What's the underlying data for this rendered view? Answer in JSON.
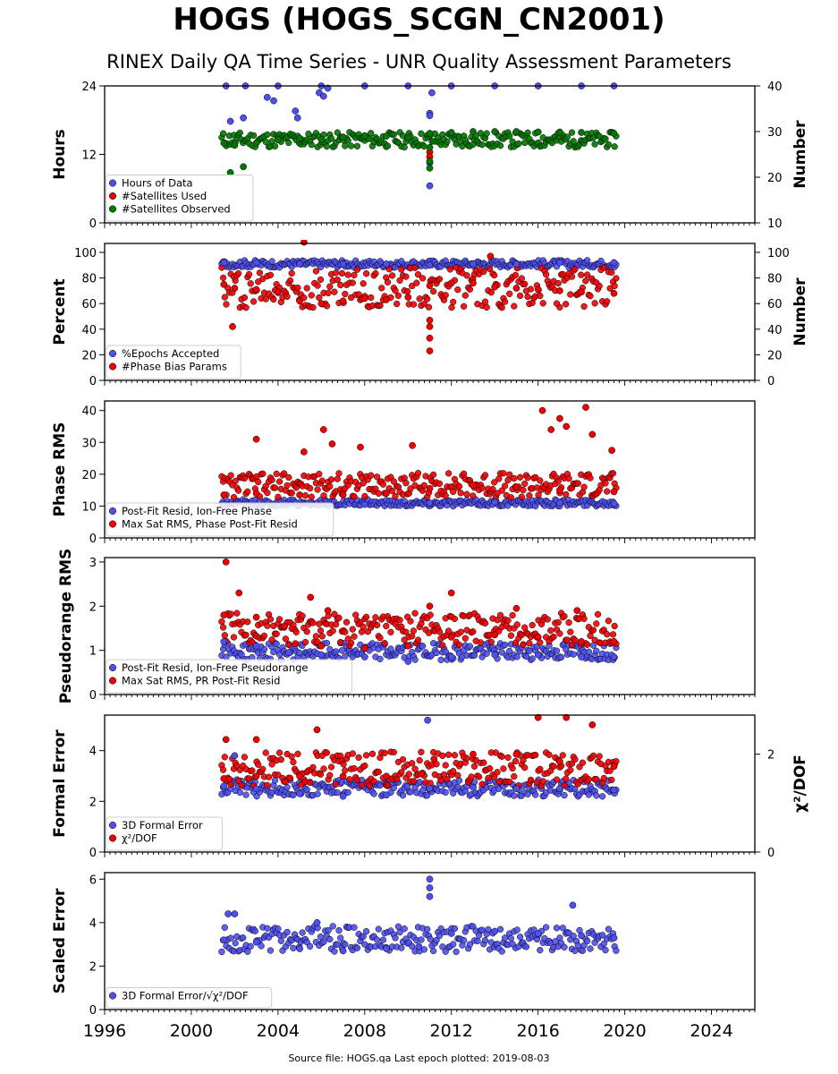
{
  "title": "HOGS (HOGS_SCGN_CN2001)",
  "subtitle": "RINEX Daily QA Time Series - UNR Quality Assessment Parameters",
  "footer": "Source file: HOGS.qa Last epoch plotted: 2019-08-03",
  "colors": {
    "blue": "#4f4ff0",
    "red": "#f00000",
    "green": "#007800"
  },
  "chart_data": [
    {
      "type": "scatter",
      "ylabel": "Hours",
      "ylabel_right": "Number",
      "xlim": [
        1996,
        2026
      ],
      "ylim": [
        0,
        24
      ],
      "ylim_right": [
        10,
        40
      ],
      "yticks": [
        "0",
        "12",
        "24"
      ],
      "yticks_right": [
        "10",
        "20",
        "30",
        "40"
      ],
      "legend_position": "lower-left",
      "series": [
        {
          "name": "Hours of Data",
          "axis": "left",
          "color": "#4f4ff0",
          "points": [
            [
              2001.6,
              24
            ],
            [
              2002.5,
              24
            ],
            [
              2004,
              24
            ],
            [
              2006,
              24
            ],
            [
              2008,
              24
            ],
            [
              2010,
              24
            ],
            [
              2012,
              24
            ],
            [
              2014,
              24
            ],
            [
              2016,
              24
            ],
            [
              2018,
              24
            ],
            [
              2019.5,
              24
            ],
            [
              2001.8,
              17.8
            ],
            [
              2002.4,
              18.4
            ],
            [
              2003.5,
              22
            ],
            [
              2003.8,
              21.4
            ],
            [
              2004.8,
              19.6
            ],
            [
              2004.9,
              18.4
            ],
            [
              2005.9,
              22.8
            ],
            [
              2006.1,
              22.2
            ],
            [
              2006.3,
              23.6
            ],
            [
              2011.0,
              19.2
            ],
            [
              2011.0,
              18.8
            ],
            [
              2011.0,
              10.5
            ],
            [
              2011.0,
              6.5
            ],
            [
              2011.1,
              22.8
            ]
          ]
        },
        {
          "name": "#Satellites Used",
          "axis": "right",
          "color": "#f00000",
          "points": [
            [
              2011.0,
              25.5
            ],
            [
              2011.0,
              24.5
            ]
          ]
        },
        {
          "name": "#Satellites Observed",
          "axis": "right",
          "color": "#007800",
          "points": [
            [
              2001.5,
              27.5
            ],
            [
              2002,
              27
            ],
            [
              2003,
              27.5
            ],
            [
              2004,
              28.2
            ],
            [
              2005,
              28.5
            ],
            [
              2006,
              28.3
            ],
            [
              2007,
              28.8
            ],
            [
              2008,
              29.1
            ],
            [
              2009,
              29.0
            ],
            [
              2010,
              28.7
            ],
            [
              2011,
              29.6
            ],
            [
              2012,
              29.8
            ],
            [
              2013,
              30.0
            ],
            [
              2014,
              30.0
            ],
            [
              2015,
              30.0
            ],
            [
              2016,
              29.9
            ],
            [
              2017,
              29.9
            ],
            [
              2018,
              29.8
            ],
            [
              2019.5,
              29.6
            ],
            [
              2001.8,
              21
            ],
            [
              2002.4,
              22.3
            ],
            [
              2011.0,
              26.5
            ],
            [
              2011.0,
              23.5
            ],
            [
              2011.0,
              22.0
            ]
          ]
        }
      ],
      "band": {
        "series": "#Satellites Observed",
        "axis": "right",
        "x_start": 2001.4,
        "x_end": 2019.6,
        "lower": 25.8,
        "upper": 30.6
      }
    },
    {
      "type": "scatter",
      "ylabel": "Percent",
      "ylabel_right": "Number",
      "xlim": [
        1996,
        2026
      ],
      "ylim": [
        0,
        107
      ],
      "ylim_right": [
        0,
        107
      ],
      "yticks": [
        "0",
        "20",
        "40",
        "60",
        "80",
        "100"
      ],
      "yticks_right": [
        "0",
        "20",
        "40",
        "60",
        "80",
        "100"
      ],
      "legend_position": "lower-left",
      "series": [
        {
          "name": "%Epochs Accepted",
          "axis": "left",
          "color": "#4f4ff0",
          "points": [
            [
              2001.5,
              92
            ],
            [
              2003,
              92
            ],
            [
              2005,
              91
            ],
            [
              2007,
              91
            ],
            [
              2009,
              91
            ],
            [
              2011,
              90
            ],
            [
              2013,
              91
            ],
            [
              2015,
              91
            ],
            [
              2017,
              92
            ],
            [
              2019.5,
              92
            ]
          ]
        },
        {
          "name": "#Phase Bias Params",
          "axis": "right",
          "color": "#f00000",
          "points": [
            [
              2001.5,
              75
            ],
            [
              2002,
              72
            ],
            [
              2003,
              71
            ],
            [
              2004,
              69
            ],
            [
              2005,
              62
            ],
            [
              2006,
              60
            ],
            [
              2007,
              62
            ],
            [
              2008,
              64
            ],
            [
              2009,
              63
            ],
            [
              2010,
              65
            ],
            [
              2011,
              74
            ],
            [
              2012,
              76
            ],
            [
              2013,
              76
            ],
            [
              2014,
              73
            ],
            [
              2015,
              72
            ],
            [
              2016,
              71
            ],
            [
              2017,
              70
            ],
            [
              2018,
              69
            ],
            [
              2019.5,
              68
            ],
            [
              2001.9,
              42
            ],
            [
              2005.2,
              108
            ],
            [
              2011.0,
              47
            ],
            [
              2011.0,
              42
            ],
            [
              2011.0,
              33
            ],
            [
              2011.0,
              23
            ],
            [
              2013.8,
              97
            ]
          ]
        }
      ],
      "band_list": [
        {
          "series": "%Epochs Accepted",
          "x_start": 2001.4,
          "x_end": 2019.6,
          "lower": 87,
          "upper": 95
        },
        {
          "series": "#Phase Bias Params",
          "x_start": 2001.4,
          "x_end": 2019.6,
          "lower": 50,
          "upper": 95
        }
      ]
    },
    {
      "type": "scatter",
      "ylabel": "Phase RMS",
      "xlim": [
        1996,
        2026
      ],
      "ylim": [
        0,
        43
      ],
      "yticks": [
        "0",
        "10",
        "20",
        "30",
        "40"
      ],
      "legend_position": "lower-left",
      "series": [
        {
          "name": "Post-Fit Resid, Ion-Free Phase",
          "axis": "left",
          "color": "#4f4ff0",
          "points": [
            [
              2001.5,
              10.5
            ],
            [
              2004,
              10.2
            ],
            [
              2008,
              10.5
            ],
            [
              2011,
              11.0
            ],
            [
              2014,
              11.2
            ],
            [
              2017,
              11.0
            ],
            [
              2019.5,
              10.8
            ]
          ]
        },
        {
          "name": "Max Sat RMS, Phase Post-Fit Resid",
          "axis": "left",
          "color": "#f00000",
          "points": [
            [
              2001.5,
              13.5
            ],
            [
              2003,
              14
            ],
            [
              2005,
              13.5
            ],
            [
              2007,
              13.5
            ],
            [
              2009,
              14
            ],
            [
              2011,
              15.5
            ],
            [
              2013,
              16.5
            ],
            [
              2015,
              16
            ],
            [
              2017,
              15
            ],
            [
              2019.5,
              14.5
            ],
            [
              2003.0,
              31
            ],
            [
              2006.1,
              34
            ],
            [
              2006.5,
              29.5
            ],
            [
              2007.8,
              28.5
            ],
            [
              2010.2,
              29
            ],
            [
              2016.2,
              40
            ],
            [
              2016.6,
              34
            ],
            [
              2017.0,
              37.5
            ],
            [
              2017.3,
              35
            ],
            [
              2018.2,
              41
            ],
            [
              2018.5,
              32.5
            ],
            [
              2019.4,
              27.5
            ],
            [
              2005.2,
              27
            ]
          ]
        }
      ],
      "band_list": [
        {
          "series": "Post-Fit Resid, Ion-Free Phase",
          "x_start": 2001.4,
          "x_end": 2019.6,
          "lower": 9.5,
          "upper": 12.5
        },
        {
          "series": "Max Sat RMS, Phase Post-Fit Resid",
          "x_start": 2001.4,
          "x_end": 2019.6,
          "lower": 11,
          "upper": 22
        }
      ]
    },
    {
      "type": "scatter",
      "ylabel": "Pseudorange RMS",
      "xlim": [
        1996,
        2026
      ],
      "ylim": [
        0,
        3.1
      ],
      "yticks": [
        "0",
        "1",
        "2",
        "3"
      ],
      "legend_position": "lower-left",
      "series": [
        {
          "name": "Post-Fit Resid, Ion-Free Pseudorange",
          "axis": "left",
          "color": "#4f4ff0",
          "points": [
            [
              2001.5,
              1.2
            ],
            [
              2003,
              1.1
            ],
            [
              2004.5,
              0.95
            ],
            [
              2006,
              0.9
            ],
            [
              2008,
              0.85
            ],
            [
              2010,
              0.75
            ],
            [
              2012,
              0.85
            ],
            [
              2014,
              0.9
            ],
            [
              2016,
              0.9
            ],
            [
              2018,
              0.85
            ],
            [
              2019.5,
              0.85
            ]
          ]
        },
        {
          "name": "Max Sat RMS, PR Post-Fit Resid",
          "axis": "left",
          "color": "#f00000",
          "points": [
            [
              2001.5,
              1.8
            ],
            [
              2003,
              1.75
            ],
            [
              2004.3,
              1.55
            ],
            [
              2004.8,
              1.15
            ],
            [
              2006,
              1.1
            ],
            [
              2008,
              1.05
            ],
            [
              2010,
              1.1
            ],
            [
              2012,
              1.3
            ],
            [
              2014,
              1.35
            ],
            [
              2016,
              1.3
            ],
            [
              2018,
              1.2
            ],
            [
              2019.5,
              1.2
            ],
            [
              2001.6,
              3.0
            ],
            [
              2005.5,
              2.2
            ],
            [
              2006.3,
              1.9
            ],
            [
              2011.0,
              2.0
            ],
            [
              2012.0,
              2.3
            ],
            [
              2015.0,
              1.95
            ],
            [
              2017.8,
              1.9
            ],
            [
              2002.2,
              2.3
            ]
          ]
        }
      ],
      "band_list": [
        {
          "series": "Post-Fit Resid, Ion-Free Pseudorange",
          "x_start": 2001.4,
          "x_end": 2019.6,
          "lower": 0.7,
          "upper": 1.25
        },
        {
          "series": "Max Sat RMS, PR Post-Fit Resid",
          "x_start": 2001.4,
          "x_end": 2019.6,
          "lower": 0.95,
          "upper": 2.0
        }
      ]
    },
    {
      "type": "scatter",
      "ylabel": "Formal Error",
      "ylabel_right": "χ²/DOF",
      "xlim": [
        1996,
        2026
      ],
      "ylim": [
        0,
        5.4
      ],
      "ylim_right": [
        0,
        2.8
      ],
      "yticks": [
        "0",
        "2",
        "4"
      ],
      "yticks_right": [
        "0",
        "2"
      ],
      "legend_position": "lower-left",
      "series": [
        {
          "name": "3D Formal Error",
          "axis": "left",
          "color": "#4f4ff0",
          "points": [
            [
              2001.5,
              2.6
            ],
            [
              2003,
              2.5
            ],
            [
              2005,
              2.3
            ],
            [
              2007,
              2.2
            ],
            [
              2009,
              2.25
            ],
            [
              2011,
              2.5
            ],
            [
              2013,
              2.55
            ],
            [
              2015,
              2.5
            ],
            [
              2017,
              2.5
            ],
            [
              2019.5,
              2.45
            ],
            [
              2002.0,
              3.8
            ],
            [
              2010.9,
              5.2
            ]
          ]
        },
        {
          "name": "χ²/DOF",
          "axis": "right",
          "color": "#f00000",
          "points": [
            [
              2001.5,
              1.5
            ],
            [
              2003,
              1.55
            ],
            [
              2005,
              1.55
            ],
            [
              2007,
              1.55
            ],
            [
              2009,
              1.55
            ],
            [
              2010.6,
              1.6
            ],
            [
              2011.2,
              1.9
            ],
            [
              2013,
              2.0
            ],
            [
              2015,
              2.0
            ],
            [
              2017,
              1.85
            ],
            [
              2019.5,
              1.75
            ],
            [
              2001.6,
              2.3
            ],
            [
              2003.0,
              2.3
            ],
            [
              2005.8,
              2.5
            ],
            [
              2016.0,
              2.75
            ],
            [
              2017.3,
              2.75
            ],
            [
              2018.5,
              2.6
            ]
          ]
        }
      ],
      "band_list": [
        {
          "series": "3D Formal Error",
          "x_start": 2001.4,
          "x_end": 2019.6,
          "lower": 2.05,
          "upper": 3.0
        },
        {
          "series": "χ²/DOF",
          "axis": "right",
          "x_start": 2001.4,
          "x_end": 2019.6,
          "lower": 1.2,
          "upper": 2.2
        }
      ]
    },
    {
      "type": "scatter",
      "ylabel": "Scaled Error",
      "xlim": [
        1996,
        2026
      ],
      "ylim": [
        0,
        6.3
      ],
      "yticks": [
        "0",
        "2",
        "4",
        "6"
      ],
      "xticks": [
        "1996",
        "2000",
        "2004",
        "2008",
        "2012",
        "2016",
        "2020",
        "2024"
      ],
      "legend_position": "lower-left",
      "series": [
        {
          "name": "3D Formal Error/√χ²/DOF",
          "axis": "left",
          "color": "#4f4ff0",
          "points": [
            [
              2001.5,
              3.2
            ],
            [
              2003,
              3.1
            ],
            [
              2005,
              2.8
            ],
            [
              2007,
              2.7
            ],
            [
              2009,
              2.8
            ],
            [
              2010.5,
              2.9
            ],
            [
              2012,
              3.5
            ],
            [
              2014,
              3.6
            ],
            [
              2016,
              3.5
            ],
            [
              2018,
              3.4
            ],
            [
              2019.5,
              3.3
            ],
            [
              2001.7,
              4.4
            ],
            [
              2002.0,
              4.4
            ],
            [
              2005.8,
              4.0
            ],
            [
              2011.0,
              6.0
            ],
            [
              2011.0,
              5.6
            ],
            [
              2011.0,
              5.2
            ],
            [
              2017.6,
              4.8
            ]
          ]
        }
      ],
      "band_list": [
        {
          "series": "3D Formal Error/√χ²/DOF",
          "x_start": 2001.4,
          "x_end": 2019.6,
          "lower": 2.4,
          "upper": 4.1
        }
      ]
    }
  ]
}
